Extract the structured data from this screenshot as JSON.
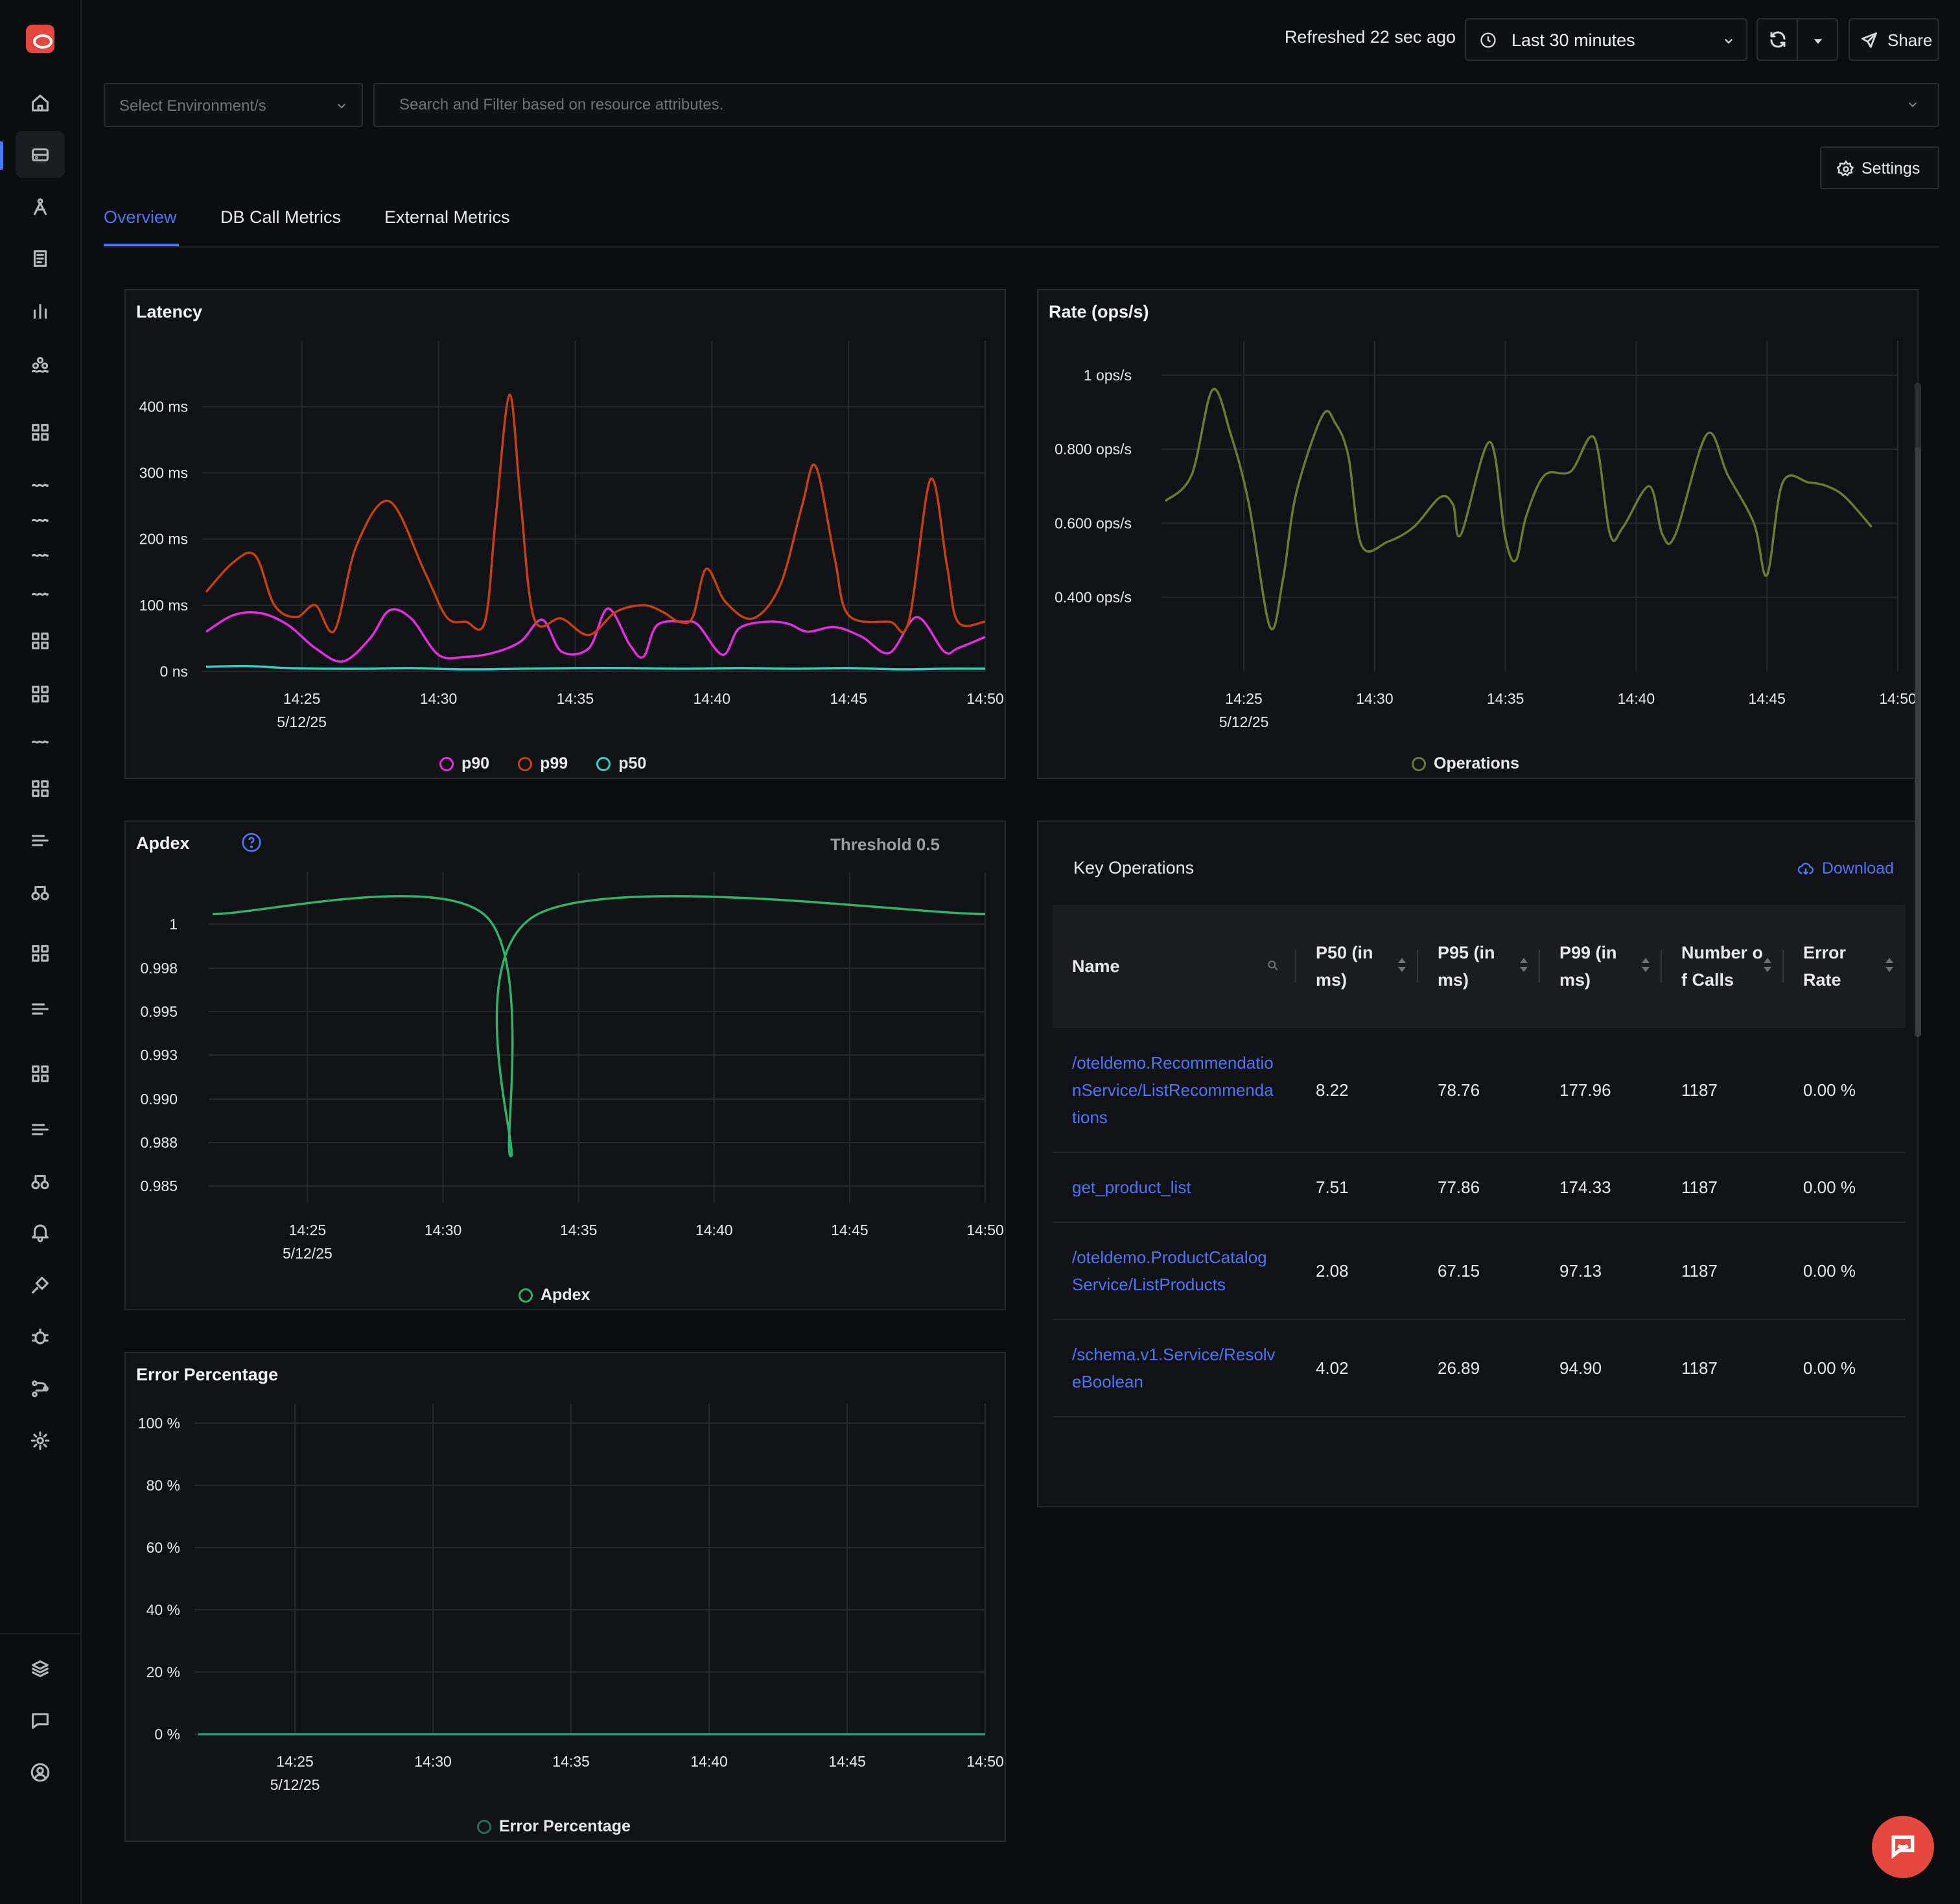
{
  "header": {
    "refreshed": "Refreshed 22 sec ago",
    "time_range": "Last 30 minutes",
    "share_label": "Share"
  },
  "filters": {
    "environment_placeholder": "Select Environment/s",
    "search_placeholder": "Search and Filter based on resource attributes."
  },
  "settings_label": "Settings",
  "tabs": [
    {
      "label": "Overview",
      "active": true
    },
    {
      "label": "DB Call Metrics",
      "active": false
    },
    {
      "label": "External Metrics",
      "active": false
    }
  ],
  "colors": {
    "accent": "#4e74f8",
    "p90": "#e42de0",
    "p99": "#c6400f",
    "p50": "#2fd3c2",
    "operations": "#6b7a2e",
    "apdex": "#2eb36a",
    "error": "#2a9a7a"
  },
  "charts": {
    "latency": {
      "title": "Latency",
      "chart_data": {
        "type": "line",
        "y_ticks": [
          "400 ms",
          "300 ms",
          "200 ms",
          "100 ms",
          "0 ns"
        ],
        "ylim": [
          0,
          470
        ],
        "x_ticks": [
          "14:25",
          "14:30",
          "14:35",
          "14:40",
          "14:45",
          "14:50"
        ],
        "x_date": "5/12/25",
        "xlim_minutes": [
          21.5,
          50
        ],
        "series": [
          {
            "name": "p90",
            "points": [
              [
                21.5,
                60
              ],
              [
                22.5,
                85
              ],
              [
                23.5,
                88
              ],
              [
                24.5,
                70
              ],
              [
                25.5,
                35
              ],
              [
                26.5,
                15
              ],
              [
                27.5,
                50
              ],
              [
                28.2,
                92
              ],
              [
                29,
                80
              ],
              [
                30,
                25
              ],
              [
                31,
                22
              ],
              [
                32,
                28
              ],
              [
                33,
                45
              ],
              [
                33.8,
                78
              ],
              [
                34.5,
                30
              ],
              [
                35.5,
                35
              ],
              [
                36.2,
                95
              ],
              [
                37,
                40
              ],
              [
                37.5,
                22
              ],
              [
                38,
                70
              ],
              [
                39,
                75
              ],
              [
                39.5,
                70
              ],
              [
                40.4,
                25
              ],
              [
                41,
                65
              ],
              [
                42,
                75
              ],
              [
                42.8,
                72
              ],
              [
                43.5,
                60
              ],
              [
                44.5,
                67
              ],
              [
                45.5,
                52
              ],
              [
                46.5,
                28
              ],
              [
                47.5,
                82
              ],
              [
                48.5,
                30
              ],
              [
                49,
                35
              ],
              [
                50,
                52
              ]
            ]
          },
          {
            "name": "p99",
            "points": [
              [
                21.5,
                120
              ],
              [
                22.5,
                165
              ],
              [
                23.3,
                175
              ],
              [
                24,
                100
              ],
              [
                24.8,
                82
              ],
              [
                25.5,
                100
              ],
              [
                26.2,
                62
              ],
              [
                27,
                190
              ],
              [
                28.2,
                257
              ],
              [
                29.5,
                150
              ],
              [
                30.3,
                82
              ],
              [
                31,
                75
              ],
              [
                31.7,
                75
              ],
              [
                32.1,
                235
              ],
              [
                32.6,
                418
              ],
              [
                33,
                260
              ],
              [
                33.5,
                80
              ],
              [
                34.5,
                80
              ],
              [
                35.5,
                55
              ],
              [
                36.5,
                90
              ],
              [
                37.5,
                100
              ],
              [
                38.2,
                90
              ],
              [
                38.8,
                75
              ],
              [
                39.3,
                82
              ],
              [
                39.8,
                155
              ],
              [
                40.5,
                105
              ],
              [
                41.5,
                80
              ],
              [
                42.5,
                130
              ],
              [
                43.3,
                250
              ],
              [
                43.8,
                310
              ],
              [
                44.5,
                170
              ],
              [
                45,
                85
              ],
              [
                46.5,
                75
              ],
              [
                47.2,
                75
              ],
              [
                48,
                290
              ],
              [
                48.6,
                160
              ],
              [
                49,
                75
              ],
              [
                50,
                75
              ]
            ]
          },
          {
            "name": "p50",
            "points": [
              [
                21.5,
                7
              ],
              [
                23,
                8
              ],
              [
                24.5,
                5
              ],
              [
                26,
                4
              ],
              [
                27.5,
                4
              ],
              [
                29,
                5
              ],
              [
                31,
                3
              ],
              [
                33,
                4
              ],
              [
                35,
                5
              ],
              [
                37,
                5
              ],
              [
                39,
                4
              ],
              [
                41,
                5
              ],
              [
                43,
                4
              ],
              [
                45,
                5
              ],
              [
                47,
                3
              ],
              [
                48.5,
                4
              ],
              [
                50,
                4
              ]
            ]
          }
        ]
      }
    },
    "rate": {
      "title": "Rate (ops/s)",
      "chart_data": {
        "type": "line",
        "y_ticks": [
          "1 ops/s",
          "0.800 ops/s",
          "0.600 ops/s",
          "0.400 ops/s"
        ],
        "y_tick_values": [
          1.0,
          0.8,
          0.6,
          0.4
        ],
        "ylim": [
          0.2,
          1.04
        ],
        "x_ticks": [
          "14:25",
          "14:30",
          "14:35",
          "14:40",
          "14:45",
          "14:50"
        ],
        "x_date": "5/12/25",
        "xlim_minutes": [
          22,
          50
        ],
        "series": [
          {
            "name": "Operations",
            "points": [
              [
                22,
                0.66
              ],
              [
                23,
                0.73
              ],
              [
                23.8,
                0.96
              ],
              [
                24.5,
                0.84
              ],
              [
                25.2,
                0.65
              ],
              [
                26,
                0.32
              ],
              [
                26.5,
                0.45
              ],
              [
                27,
                0.68
              ],
              [
                28,
                0.89
              ],
              [
                28.5,
                0.87
              ],
              [
                29,
                0.78
              ],
              [
                29.5,
                0.54
              ],
              [
                30.5,
                0.55
              ],
              [
                31.5,
                0.59
              ],
              [
                32.5,
                0.67
              ],
              [
                33,
                0.65
              ],
              [
                33.3,
                0.57
              ],
              [
                34.4,
                0.82
              ],
              [
                35,
                0.56
              ],
              [
                35.4,
                0.5
              ],
              [
                35.8,
                0.62
              ],
              [
                36.5,
                0.73
              ],
              [
                37.5,
                0.74
              ],
              [
                38.4,
                0.83
              ],
              [
                39,
                0.57
              ],
              [
                39.5,
                0.59
              ],
              [
                40.5,
                0.7
              ],
              [
                41,
                0.57
              ],
              [
                41.5,
                0.57
              ],
              [
                42.7,
                0.84
              ],
              [
                43.5,
                0.73
              ],
              [
                44.5,
                0.6
              ],
              [
                45,
                0.46
              ],
              [
                45.6,
                0.71
              ],
              [
                46.6,
                0.71
              ],
              [
                47.3,
                0.7
              ],
              [
                48,
                0.67
              ],
              [
                49,
                0.59
              ]
            ]
          }
        ]
      }
    },
    "apdex": {
      "title": "Apdex",
      "threshold": "Threshold 0.5",
      "chart_data": {
        "type": "line",
        "y_ticks": [
          "1",
          "0.998",
          "0.995",
          "0.993",
          "0.990",
          "0.988",
          "0.985"
        ],
        "ylim": [
          0.9845,
          1.0012
        ],
        "x_ticks": [
          "14:25",
          "14:30",
          "14:35",
          "14:40",
          "14:45",
          "14:50"
        ],
        "x_date": "5/12/25",
        "xlim_minutes": [
          21.5,
          50
        ],
        "series": [
          {
            "name": "Apdex",
            "points": [
              [
                21.5,
                1.0
              ],
              [
                31.5,
                1.0
              ],
              [
                32.5,
                0.987
              ],
              [
                33.5,
                1.0
              ],
              [
                50,
                1.0
              ]
            ]
          }
        ]
      }
    },
    "error": {
      "title": "Error Percentage",
      "chart_data": {
        "type": "line",
        "y_ticks": [
          "100 %",
          "80 %",
          "60 %",
          "40 %",
          "20 %",
          "0 %"
        ],
        "ylim": [
          0,
          100
        ],
        "x_ticks": [
          "14:25",
          "14:30",
          "14:35",
          "14:40",
          "14:45",
          "14:50"
        ],
        "x_date": "5/12/25",
        "xlim_minutes": [
          21.5,
          50
        ],
        "series": [
          {
            "name": "Error Percentage",
            "points": [
              [
                21.5,
                0
              ],
              [
                50,
                0
              ]
            ]
          }
        ]
      }
    }
  },
  "key_operations": {
    "title": "Key Operations",
    "download_label": "Download",
    "columns": [
      "Name",
      "P50 (in ms)",
      "P95 (in ms)",
      "P99 (in ms)",
      "Number of Calls",
      "Error Rate"
    ],
    "rows": [
      [
        "/oteldemo.RecommendationService/ListRecommendations",
        "8.22",
        "78.76",
        "177.96",
        "1187",
        "0.00 %"
      ],
      [
        "get_product_list",
        "7.51",
        "77.86",
        "174.33",
        "1187",
        "0.00 %"
      ],
      [
        "/oteldemo.ProductCatalogService/ListProducts",
        "2.08",
        "67.15",
        "97.13",
        "1187",
        "0.00 %"
      ],
      [
        "/schema.v1.Service/ResolveBoolean",
        "4.02",
        "26.89",
        "94.90",
        "1187",
        "0.00 %"
      ]
    ]
  },
  "sidebar_icons": [
    "home-icon",
    "services-icon",
    "traces-icon",
    "logs-icon",
    "dashboards-icon",
    "messaging-queues-icon",
    "grid-icon",
    "waves-icon",
    "waves-icon",
    "waves-icon",
    "waves-icon",
    "grid-icon",
    "grid-icon",
    "waves-icon",
    "grid-icon",
    "list-icon",
    "binoculars-icon",
    "grid-icon",
    "list-icon",
    "grid-icon",
    "list-icon",
    "binoculars-icon",
    "alerts-icon",
    "integrations-icon",
    "exceptions-icon",
    "service-map-icon",
    "settings-icon",
    "layers-icon",
    "chat-icon",
    "user-icon"
  ]
}
